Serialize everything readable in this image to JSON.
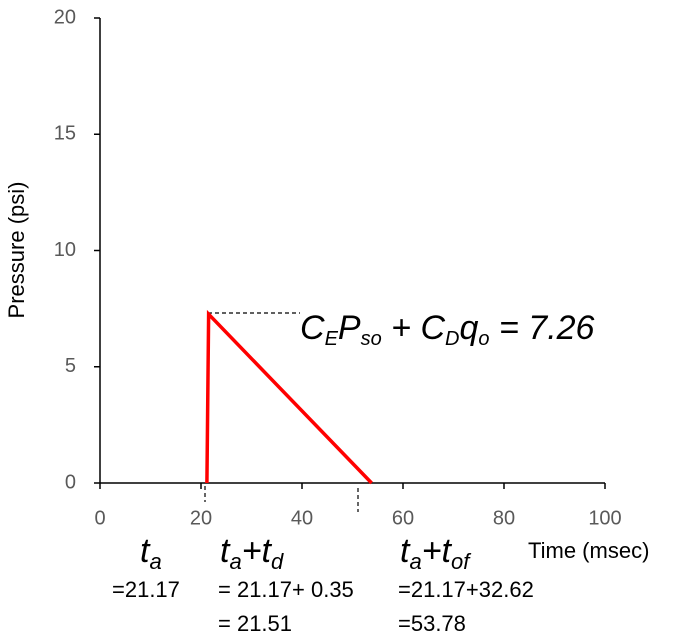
{
  "chart_data": {
    "type": "line",
    "x_label": "Time (msec)",
    "y_label": "Pressure (psi)",
    "x": [
      21.17,
      21.51,
      53.78
    ],
    "series": [
      {
        "name": "Pressure",
        "color": "#ff0000",
        "values": [
          0,
          7.26,
          0
        ]
      }
    ],
    "xlim": [
      0,
      100
    ],
    "xticks": [
      0,
      20,
      40,
      60,
      80,
      100
    ],
    "ylim": [
      0,
      20
    ],
    "yticks": [
      0,
      5,
      10,
      15,
      20
    ],
    "annotations": [
      {
        "parts": [
          {
            "text": "C"
          },
          {
            "text": "E",
            "sub": true
          },
          {
            "text": "P"
          },
          {
            "text": "so",
            "sub": true
          },
          {
            "text": " + C"
          },
          {
            "text": "D",
            "sub": true
          },
          {
            "text": "q"
          },
          {
            "text": "o",
            "sub": true
          },
          {
            "text": " = 7.26"
          }
        ],
        "lines": []
      },
      {
        "parts": [
          {
            "text": "t"
          },
          {
            "text": "a",
            "sub": true
          }
        ],
        "lines": [
          "=21.17"
        ]
      },
      {
        "parts": [
          {
            "text": "t"
          },
          {
            "text": "a",
            "sub": true
          },
          {
            "text": "+t"
          },
          {
            "text": "d",
            "sub": true
          }
        ],
        "lines": [
          "= 21.17+ 0.35",
          "= 21.51"
        ]
      },
      {
        "parts": [
          {
            "text": "t"
          },
          {
            "text": "a",
            "sub": true
          },
          {
            "text": "+t"
          },
          {
            "text": "of",
            "sub": true
          }
        ],
        "lines": [
          "=21.17+32.62",
          "=53.78"
        ]
      }
    ]
  }
}
